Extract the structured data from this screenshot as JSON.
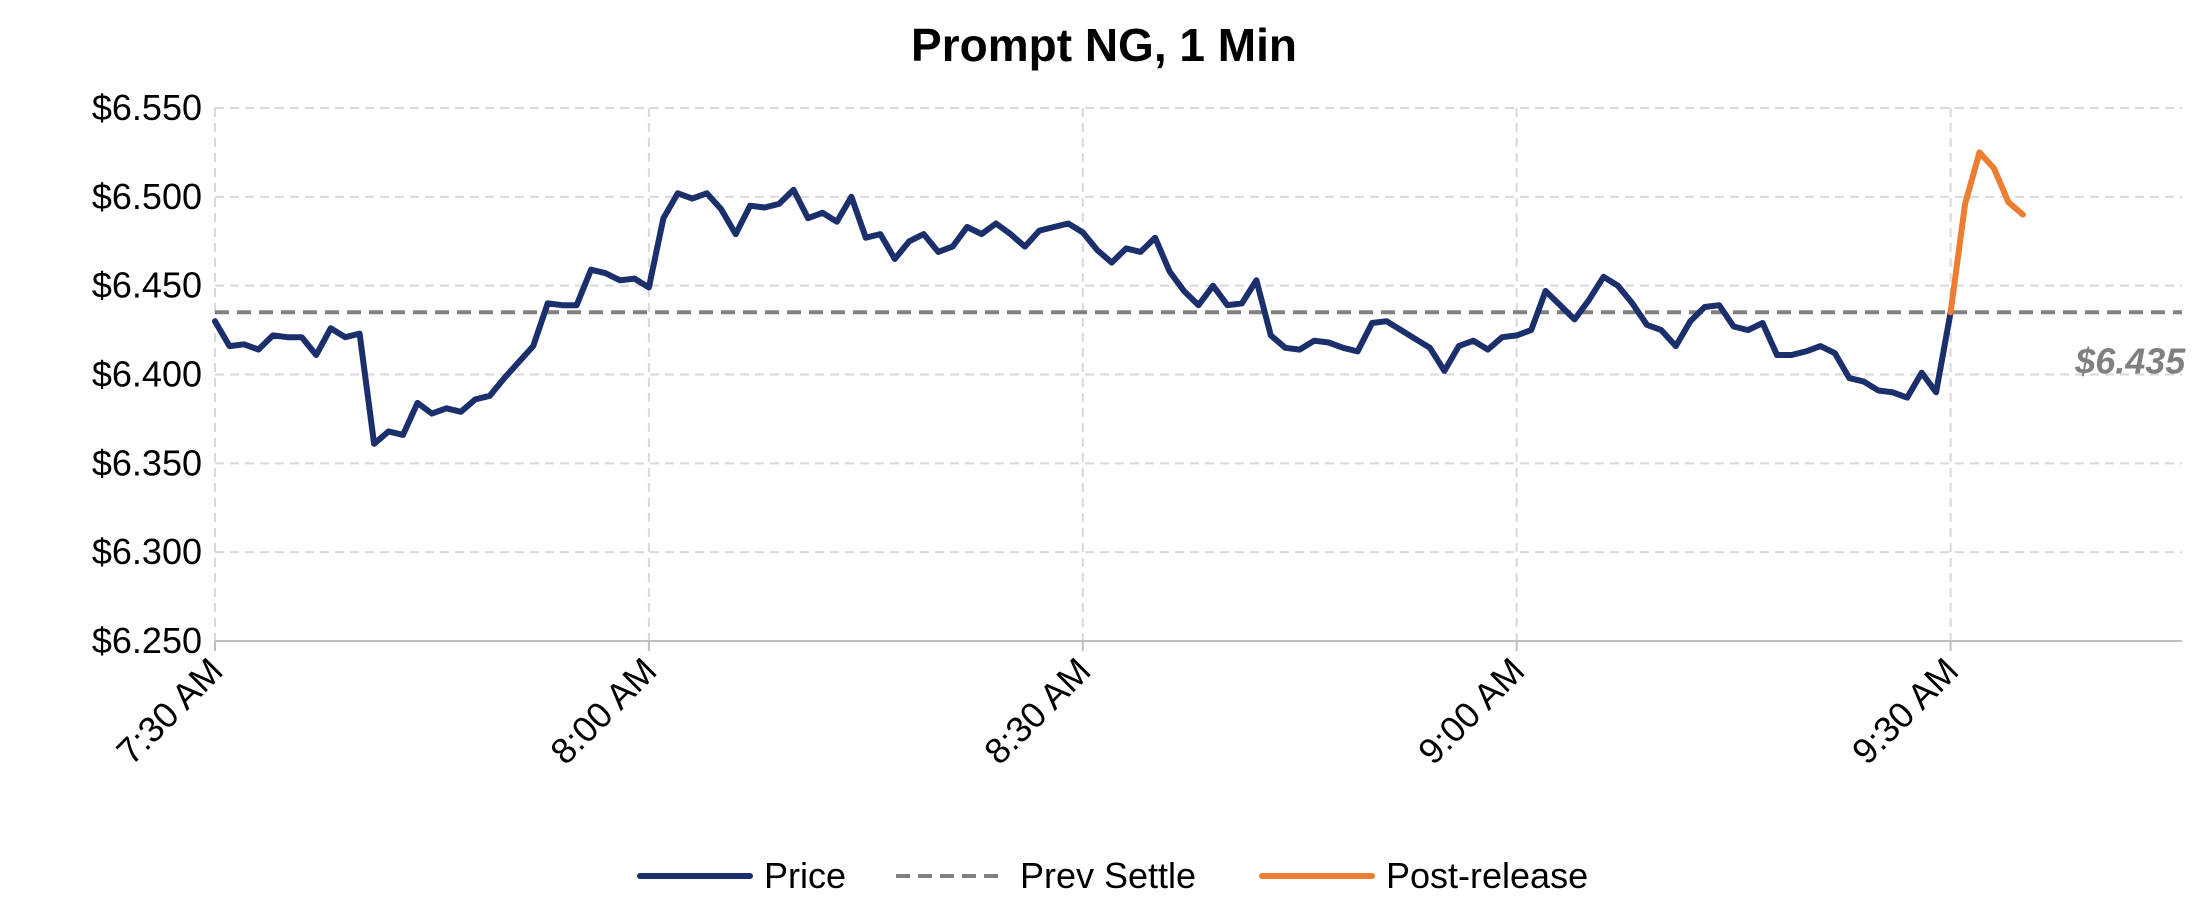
{
  "chart_data": {
    "type": "line",
    "title": "Prompt NG, 1 Min",
    "xlabel": "",
    "ylabel": "",
    "ylim": [
      6.25,
      6.55
    ],
    "y_ticks": [
      6.25,
      6.3,
      6.35,
      6.4,
      6.45,
      6.5,
      6.55
    ],
    "y_tick_labels": [
      "$6.250",
      "$6.300",
      "$6.350",
      "$6.400",
      "$6.450",
      "$6.500",
      "$6.550"
    ],
    "x_unit": "minutes from 7:30 AM",
    "xlim": [
      0,
      136
    ],
    "x_ticks": [
      0,
      30,
      60,
      90,
      120
    ],
    "x_tick_labels": [
      "7:30 AM",
      "8:00 AM",
      "8:30 AM",
      "9:00 AM",
      "9:30 AM"
    ],
    "grid": true,
    "legend_position": "bottom",
    "series": [
      {
        "name": "Price",
        "color": "#1a2f6b",
        "style": "solid",
        "x": [
          0,
          1,
          2,
          3,
          4,
          5,
          6,
          7,
          8,
          9,
          10,
          11,
          12,
          13,
          14,
          15,
          16,
          17,
          18,
          19,
          20,
          21,
          22,
          23,
          24,
          25,
          26,
          27,
          28,
          29,
          30,
          31,
          32,
          33,
          34,
          35,
          36,
          37,
          38,
          39,
          40,
          41,
          42,
          43,
          44,
          45,
          46,
          47,
          48,
          49,
          50,
          51,
          52,
          53,
          54,
          55,
          56,
          57,
          58,
          59,
          60,
          61,
          62,
          63,
          64,
          65,
          66,
          67,
          68,
          69,
          70,
          71,
          72,
          73,
          74,
          75,
          76,
          77,
          78,
          79,
          80,
          81,
          82,
          83,
          84,
          85,
          86,
          87,
          88,
          89,
          90,
          91,
          92,
          93,
          94,
          95,
          96,
          97,
          98,
          99,
          100,
          101,
          102,
          103,
          104,
          105,
          106,
          107,
          108,
          109,
          110,
          111,
          112,
          113,
          114,
          115,
          116,
          117,
          118,
          119,
          120
        ],
        "values": [
          6.43,
          6.416,
          6.417,
          6.414,
          6.422,
          6.421,
          6.421,
          6.411,
          6.426,
          6.421,
          6.423,
          6.361,
          6.368,
          6.366,
          6.384,
          6.378,
          6.381,
          6.379,
          6.386,
          6.388,
          6.398,
          6.407,
          6.416,
          6.44,
          6.439,
          6.439,
          6.459,
          6.457,
          6.453,
          6.454,
          6.449,
          6.488,
          6.502,
          6.499,
          6.502,
          6.493,
          6.479,
          6.495,
          6.494,
          6.496,
          6.504,
          6.488,
          6.491,
          6.486,
          6.5,
          6.477,
          6.479,
          6.465,
          6.475,
          6.479,
          6.469,
          6.472,
          6.483,
          6.479,
          6.485,
          6.479,
          6.472,
          6.481,
          6.483,
          6.485,
          6.48,
          6.47,
          6.463,
          6.471,
          6.469,
          6.477,
          6.458,
          6.447,
          6.439,
          6.45,
          6.439,
          6.44,
          6.453,
          6.422,
          6.415,
          6.414,
          6.419,
          6.418,
          6.415,
          6.413,
          6.429,
          6.43,
          6.425,
          6.42,
          6.415,
          6.402,
          6.416,
          6.419,
          6.414,
          6.421,
          6.422,
          6.425,
          6.447,
          6.439,
          6.431,
          6.442,
          6.455,
          6.45,
          6.44,
          6.428,
          6.425,
          6.416,
          6.43,
          6.438,
          6.439,
          6.427,
          6.425,
          6.429,
          6.411,
          6.411,
          6.413,
          6.416,
          6.412,
          6.398,
          6.396,
          6.391,
          6.39,
          6.387,
          6.401,
          6.39,
          6.435
        ]
      },
      {
        "name": "Prev Settle",
        "color": "#808080",
        "style": "dashed",
        "x": [
          0,
          136
        ],
        "values": [
          6.435,
          6.435
        ]
      },
      {
        "name": "Post-release",
        "color": "#ed7d31",
        "style": "solid",
        "x": [
          120,
          121,
          122,
          123,
          124,
          125
        ],
        "values": [
          6.435,
          6.496,
          6.525,
          6.516,
          6.497,
          6.49
        ]
      }
    ],
    "annotations": [
      {
        "text": "$6.435",
        "x": 130,
        "y": 6.435,
        "color": "#808080"
      }
    ]
  }
}
